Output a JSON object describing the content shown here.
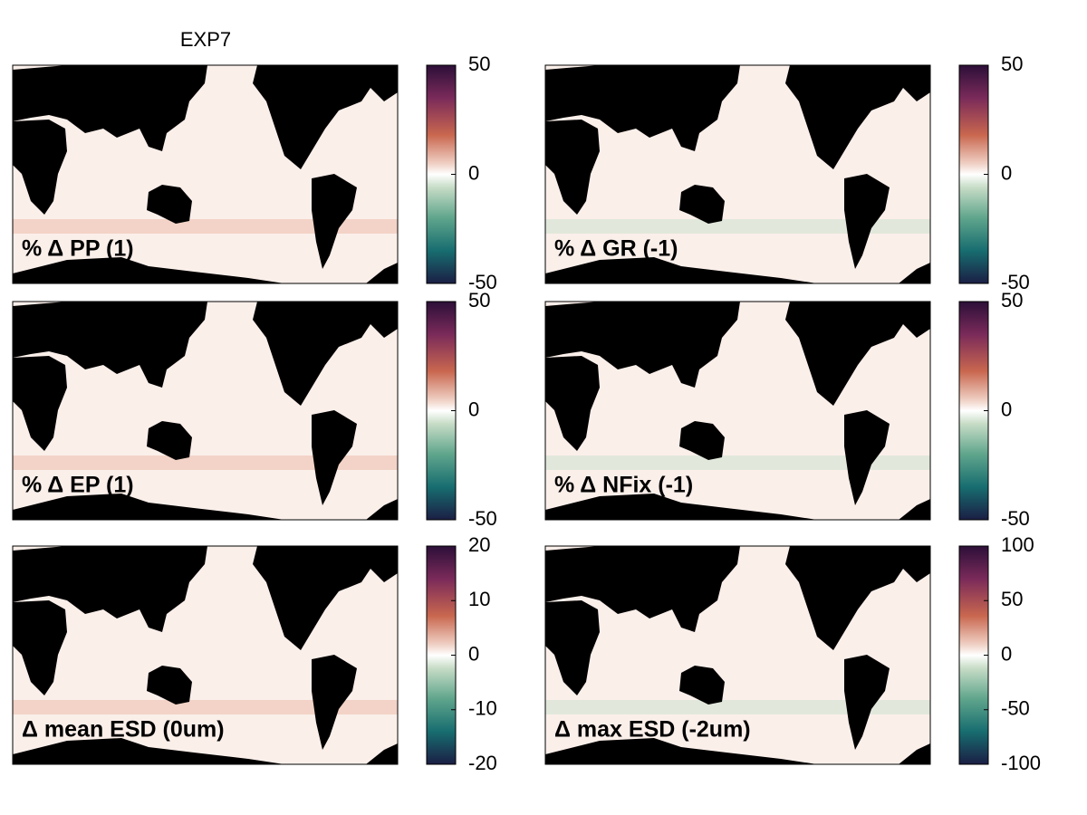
{
  "title": "EXP7",
  "panels": [
    {
      "label": "% Δ PP (1)",
      "colorbar": {
        "lim": [
          -50,
          50
        ],
        "ticks": [
          -50,
          0,
          50
        ]
      }
    },
    {
      "label": "% Δ GR (-1)",
      "colorbar": {
        "lim": [
          -50,
          50
        ],
        "ticks": [
          -50,
          0,
          50
        ]
      }
    },
    {
      "label": "% Δ EP (1)",
      "colorbar": {
        "lim": [
          -50,
          50
        ],
        "ticks": [
          -50,
          0,
          50
        ]
      }
    },
    {
      "label": "% Δ NFix (-1)",
      "colorbar": {
        "lim": [
          -50,
          50
        ],
        "ticks": [
          -50,
          0,
          50
        ]
      }
    },
    {
      "label": "Δ mean ESD (0um)",
      "colorbar": {
        "lim": [
          -20,
          20
        ],
        "ticks": [
          -20,
          -10,
          0,
          10,
          20
        ]
      }
    },
    {
      "label": "Δ max ESD (-2um)",
      "colorbar": {
        "lim": [
          -100,
          100
        ],
        "ticks": [
          -100,
          -50,
          0,
          50,
          100
        ]
      }
    }
  ]
}
